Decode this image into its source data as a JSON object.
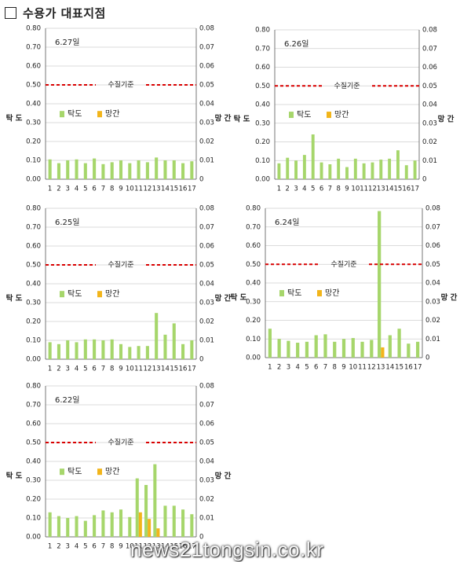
{
  "header": {
    "title": "수용가 대표지점"
  },
  "watermark": "news21tongsin.co.kr",
  "colors": {
    "turbidity": "#a6d66b",
    "manganese": "#f2b51b",
    "standard": "#d90000",
    "grid": "#cfcfcf",
    "axis": "#555555"
  },
  "chart_data": [
    {
      "type": "bar",
      "date_label": "6.27일",
      "categories": [
        "1",
        "2",
        "3",
        "4",
        "5",
        "6",
        "7",
        "8",
        "9",
        "10",
        "11",
        "12",
        "13",
        "14",
        "15",
        "16",
        "17"
      ],
      "series": [
        {
          "name": "탁도",
          "axis": "left",
          "values": [
            0.105,
            0.085,
            0.1,
            0.105,
            0.085,
            0.11,
            0.08,
            0.09,
            0.1,
            0.085,
            0.1,
            0.09,
            0.115,
            0.1,
            0.1,
            0.085,
            0.095
          ]
        },
        {
          "name": "망간",
          "axis": "right",
          "values": [
            0,
            0,
            0,
            0,
            0,
            0,
            0,
            0,
            0,
            0,
            0,
            0,
            0,
            0,
            0,
            0,
            0
          ]
        }
      ],
      "ylabel_left": "탁 도",
      "ylabel_right": "망 간",
      "ylim_left": [
        0,
        0.8
      ],
      "ylim_right": [
        0,
        0.08
      ],
      "yticks_left": [
        "0.00",
        "0.10",
        "0.20",
        "0.30",
        "0.40",
        "0.50",
        "0.60",
        "0.70",
        "0.80"
      ],
      "yticks_right": [
        "0",
        "0.01",
        "0.02",
        "0.03",
        "0.04",
        "0.05",
        "0.06",
        "0.07",
        "0.08"
      ],
      "standard_line": {
        "label": "수질기준",
        "value": 0.5
      },
      "legend": "middle-left",
      "grid": true
    },
    {
      "type": "bar",
      "date_label": "6.26일",
      "categories": [
        "1",
        "2",
        "3",
        "4",
        "5",
        "6",
        "7",
        "8",
        "9",
        "10",
        "11",
        "12",
        "13",
        "14",
        "15",
        "16",
        "17"
      ],
      "series": [
        {
          "name": "탁도",
          "axis": "left",
          "values": [
            0.085,
            0.115,
            0.1,
            0.13,
            0.24,
            0.09,
            0.08,
            0.11,
            0.065,
            0.11,
            0.085,
            0.09,
            0.105,
            0.11,
            0.155,
            0.075,
            0.1
          ]
        },
        {
          "name": "망간",
          "axis": "right",
          "values": [
            0,
            0,
            0,
            0,
            0,
            0,
            0,
            0,
            0,
            0,
            0,
            0,
            0,
            0,
            0,
            0,
            0
          ]
        }
      ],
      "ylabel_left": "탁 도",
      "ylabel_right": "망 간",
      "ylim_left": [
        0,
        0.8
      ],
      "ylim_right": [
        0,
        0.08
      ],
      "yticks_left": [
        "0.00",
        "0.10",
        "0.20",
        "0.30",
        "0.40",
        "0.50",
        "0.60",
        "0.70",
        "0.80"
      ],
      "yticks_right": [
        "0",
        "0.01",
        "0.02",
        "0.03",
        "0.04",
        "0.05",
        "0.06",
        "0.07",
        "0.08"
      ],
      "standard_line": {
        "label": "수질기준",
        "value": 0.5
      },
      "legend": "middle-left",
      "grid": true
    },
    {
      "type": "bar",
      "date_label": "6.25일",
      "categories": [
        "1",
        "2",
        "3",
        "4",
        "5",
        "6",
        "7",
        "8",
        "9",
        "10",
        "11",
        "12",
        "13",
        "14",
        "15",
        "16",
        "17"
      ],
      "series": [
        {
          "name": "탁도",
          "axis": "left",
          "values": [
            0.09,
            0.08,
            0.1,
            0.09,
            0.105,
            0.105,
            0.1,
            0.105,
            0.08,
            0.065,
            0.07,
            0.07,
            0.245,
            0.13,
            0.19,
            0.08,
            0.1
          ]
        },
        {
          "name": "망간",
          "axis": "right",
          "values": [
            0,
            0,
            0,
            0,
            0,
            0,
            0,
            0,
            0,
            0,
            0,
            0,
            0,
            0,
            0,
            0,
            0
          ]
        }
      ],
      "ylabel_left": "탁 도",
      "ylabel_right": "망 간",
      "ylim_left": [
        0,
        0.8
      ],
      "ylim_right": [
        0,
        0.08
      ],
      "yticks_left": [
        "0.00",
        "0.10",
        "0.20",
        "0.30",
        "0.40",
        "0.50",
        "0.60",
        "0.70",
        "0.80"
      ],
      "yticks_right": [
        "0",
        "0.01",
        "0.02",
        "0.03",
        "0.04",
        "0.05",
        "0.06",
        "0.07",
        "0.08"
      ],
      "standard_line": {
        "label": "수질기준",
        "value": 0.5
      },
      "legend": "middle-left",
      "grid": true
    },
    {
      "type": "bar",
      "date_label": "6.24일",
      "categories": [
        "1",
        "2",
        "3",
        "4",
        "5",
        "6",
        "7",
        "8",
        "9",
        "10",
        "11",
        "12",
        "13",
        "14",
        "15",
        "16",
        "17"
      ],
      "series": [
        {
          "name": "탁도",
          "axis": "left",
          "values": [
            0.155,
            0.1,
            0.09,
            0.08,
            0.085,
            0.12,
            0.125,
            0.085,
            0.1,
            0.105,
            0.085,
            0.095,
            0.785,
            0.12,
            0.155,
            0.075,
            0.085
          ]
        },
        {
          "name": "망간",
          "axis": "right",
          "values": [
            0,
            0,
            0,
            0,
            0,
            0,
            0,
            0,
            0,
            0,
            0,
            0,
            0.0055,
            0,
            0,
            0,
            0
          ]
        }
      ],
      "ylabel_left": "탁 도",
      "ylabel_right": "망 간",
      "ylim_left": [
        0,
        0.8
      ],
      "ylim_right": [
        0,
        0.08
      ],
      "yticks_left": [
        "0.00",
        "0.10",
        "0.20",
        "0.30",
        "0.40",
        "0.50",
        "0.60",
        "0.70",
        "0.80"
      ],
      "yticks_right": [
        "0",
        "0.01",
        "0.02",
        "0.03",
        "0.04",
        "0.05",
        "0.06",
        "0.07",
        "0.08"
      ],
      "standard_line": {
        "label": "수질기준",
        "value": 0.5
      },
      "legend": "middle-left",
      "grid": true
    },
    {
      "type": "bar",
      "date_label": "6.22일",
      "categories": [
        "1",
        "2",
        "3",
        "4",
        "5",
        "6",
        "7",
        "8",
        "9",
        "10",
        "11",
        "12",
        "13",
        "14",
        "15",
        "16",
        "17"
      ],
      "series": [
        {
          "name": "탁도",
          "axis": "left",
          "values": [
            0.13,
            0.11,
            0.1,
            0.11,
            0.085,
            0.115,
            0.14,
            0.13,
            0.145,
            0.105,
            0.31,
            0.275,
            0.385,
            0.165,
            0.165,
            0.145,
            0.12
          ]
        },
        {
          "name": "망간",
          "axis": "right",
          "values": [
            0,
            0,
            0,
            0,
            0,
            0,
            0,
            0,
            0,
            0,
            0.013,
            0.0095,
            0.0045,
            0,
            0,
            0,
            0
          ]
        }
      ],
      "ylabel_left": "탁 도",
      "ylabel_right": "망 간",
      "ylim_left": [
        0,
        0.8
      ],
      "ylim_right": [
        0,
        0.08
      ],
      "yticks_left": [
        "0.00",
        "0.10",
        "0.20",
        "0.30",
        "0.40",
        "0.50",
        "0.60",
        "0.70",
        "0.80"
      ],
      "yticks_right": [
        "0",
        "0.01",
        "0.02",
        "0.03",
        "0.04",
        "0.05",
        "0.06",
        "0.07",
        "0.08"
      ],
      "standard_line": {
        "label": "수질기준",
        "value": 0.5
      },
      "legend": "middle-left",
      "grid": true
    }
  ]
}
